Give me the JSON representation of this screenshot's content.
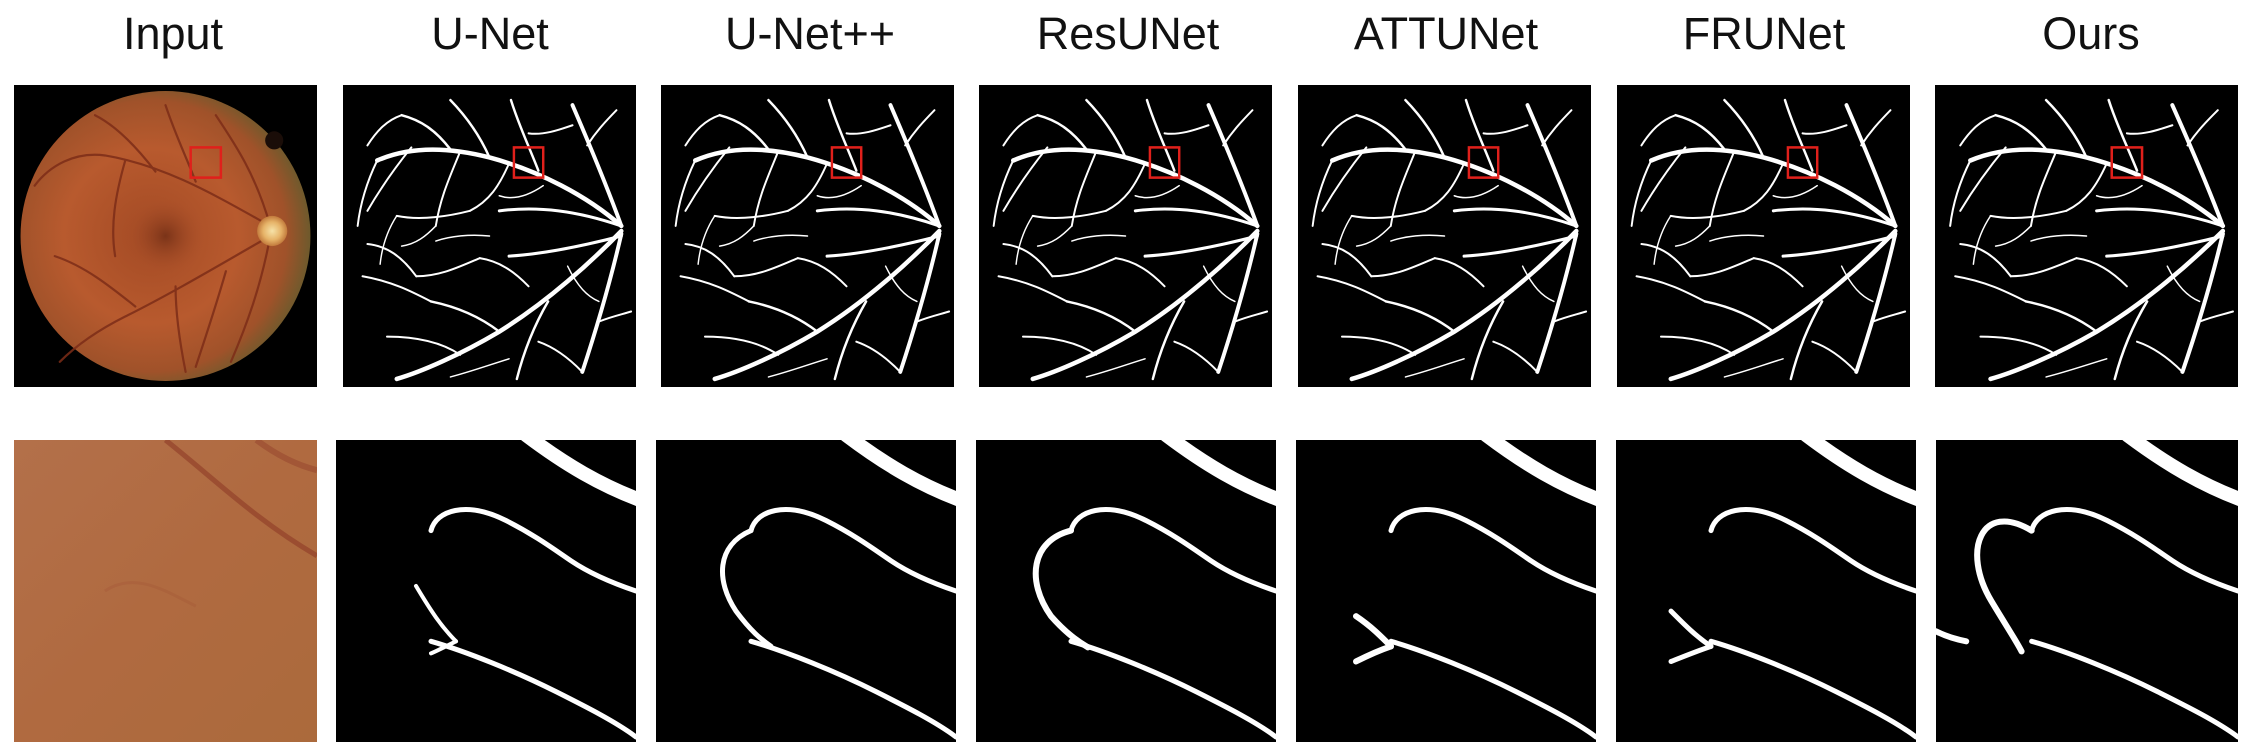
{
  "figure": {
    "columns": [
      "Input",
      "U-Net",
      "U-Net++",
      "ResUNet",
      "ATTUNet",
      "FRUNet",
      "Ours"
    ],
    "rows": [
      "full-view",
      "zoomed-detail"
    ],
    "colors": {
      "highlight_box": "#e0201b",
      "mask_foreground": "#ffffff",
      "mask_background": "#000000",
      "fundus_tone": "#b0532b",
      "zoom_tone": "#b26a42"
    }
  }
}
